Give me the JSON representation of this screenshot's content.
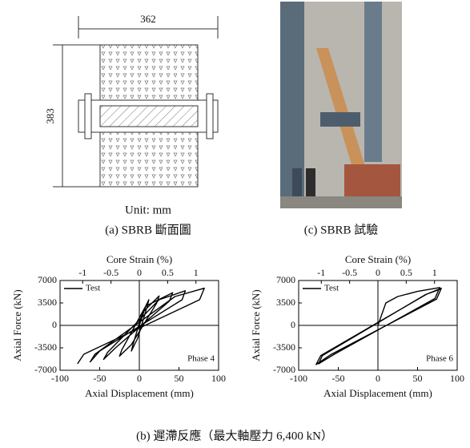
{
  "figure_a": {
    "width_dim": "362",
    "height_dim": "383",
    "unit_label": "Unit: mm",
    "caption": "(a) SBRB 斷面圖"
  },
  "figure_c": {
    "caption": "(c) SBRB 試驗"
  },
  "chart_data": [
    {
      "type": "line",
      "x_label": "Axial Displacement (mm)",
      "y_label": "Axial Force (kN)",
      "top_axis_label": "Core Strain (%)",
      "x2lim": [
        -1.4,
        1.4
      ],
      "x2ticks": [
        -1,
        -0.5,
        0,
        0.5,
        1
      ],
      "xlim": [
        -100,
        100
      ],
      "xticks": [
        -100,
        -50,
        0,
        50,
        100
      ],
      "ylim": [
        -7000,
        7000
      ],
      "yticks": [
        -7000,
        -3500,
        0,
        3500,
        7000
      ],
      "annotation": "Phase 4",
      "series": [
        {
          "name": "Test",
          "color": "#000000",
          "x": [
            0,
            8,
            12,
            10,
            -2,
            -8,
            -10,
            -8,
            4,
            25,
            22,
            -10,
            -25,
            -22,
            8,
            42,
            38,
            -30,
            -45,
            -40,
            25,
            58,
            54,
            -50,
            -62,
            -56,
            45,
            82,
            76,
            -70,
            -78
          ],
          "values": [
            0,
            3000,
            4000,
            3000,
            -2000,
            -3500,
            -4000,
            -3000,
            2000,
            4600,
            3500,
            -3000,
            -4800,
            -3800,
            3000,
            5100,
            3800,
            -3500,
            -5300,
            -4200,
            4000,
            5400,
            4000,
            -4000,
            -5700,
            -4500,
            4500,
            5800,
            4000,
            -4500,
            -6000
          ]
        }
      ]
    },
    {
      "type": "line",
      "x_label": "Axial Displacement (mm)",
      "y_label": "Axial Force (kN)",
      "top_axis_label": "Core Strain (%)",
      "x2lim": [
        -1.4,
        1.4
      ],
      "x2ticks": [
        -1,
        -0.5,
        0,
        0.5,
        1
      ],
      "xlim": [
        -100,
        100
      ],
      "xticks": [
        -100,
        -50,
        0,
        50,
        100
      ],
      "ylim": [
        -7000,
        7000
      ],
      "yticks": [
        -7000,
        -3500,
        0,
        3500,
        7000
      ],
      "annotation": "Phase 6",
      "series": [
        {
          "name": "Test",
          "color": "#000000",
          "x": [
            0,
            10,
            25,
            50,
            78,
            72,
            -55,
            -75,
            -70,
            60,
            80,
            74,
            -60,
            -78,
            -72,
            62,
            80
          ],
          "values": [
            0,
            3500,
            4500,
            5300,
            5900,
            4200,
            -4500,
            -6000,
            -4700,
            4800,
            5800,
            4100,
            -4600,
            -6100,
            -4700,
            4900,
            5700
          ]
        }
      ]
    }
  ],
  "caption_b": "(b) 遲滯反應（最大軸壓力 6,400 kN）"
}
